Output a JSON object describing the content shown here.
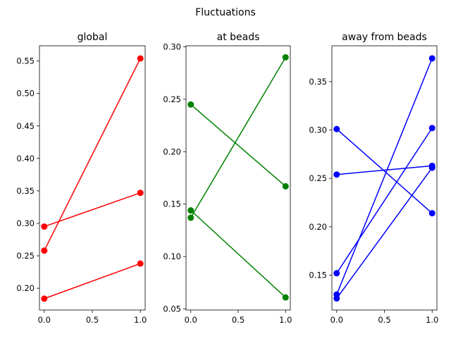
{
  "figure": {
    "suptitle": "Fluctuations"
  },
  "chart_data": [
    {
      "type": "line",
      "title": "global",
      "color": "#ff0000",
      "xlim": [
        -0.05,
        1.05
      ],
      "ylim": [
        0.1665,
        0.5735
      ],
      "xticks": [
        0.0,
        0.5,
        1.0
      ],
      "xtick_labels": [
        "0.0",
        "0.5",
        "1.0"
      ],
      "yticks": [
        0.2,
        0.25,
        0.3,
        0.35,
        0.4,
        0.45,
        0.5,
        0.55
      ],
      "ytick_labels": [
        "0.20",
        "0.25",
        "0.30",
        "0.35",
        "0.40",
        "0.45",
        "0.50",
        "0.55"
      ],
      "series": [
        {
          "x": [
            0,
            1
          ],
          "y": [
            0.295,
            0.347
          ]
        },
        {
          "x": [
            0,
            1
          ],
          "y": [
            0.258,
            0.554
          ]
        },
        {
          "x": [
            0,
            1
          ],
          "y": [
            0.184,
            0.238
          ]
        }
      ]
    },
    {
      "type": "line",
      "title": "at beads",
      "color": "#008000",
      "xlim": [
        -0.05,
        1.05
      ],
      "ylim": [
        0.049,
        0.301
      ],
      "xticks": [
        0.0,
        0.5,
        1.0
      ],
      "xtick_labels": [
        "0.0",
        "0.5",
        "1.0"
      ],
      "yticks": [
        0.05,
        0.1,
        0.15,
        0.2,
        0.25,
        0.3
      ],
      "ytick_labels": [
        "0.05",
        "0.10",
        "0.15",
        "0.20",
        "0.25",
        "0.30"
      ],
      "series": [
        {
          "x": [
            0,
            1
          ],
          "y": [
            0.245,
            0.167
          ]
        },
        {
          "x": [
            0,
            1
          ],
          "y": [
            0.137,
            0.29
          ]
        },
        {
          "x": [
            0,
            1
          ],
          "y": [
            0.144,
            0.061
          ]
        }
      ]
    },
    {
      "type": "line",
      "title": "away from beads",
      "color": "#0000ff",
      "xlim": [
        -0.05,
        1.05
      ],
      "ylim": [
        0.114,
        0.387
      ],
      "xticks": [
        0.0,
        0.5,
        1.0
      ],
      "xtick_labels": [
        "0.0",
        "0.5",
        "1.0"
      ],
      "yticks": [
        0.15,
        0.2,
        0.25,
        0.3,
        0.35
      ],
      "ytick_labels": [
        "0.15",
        "0.20",
        "0.25",
        "0.30",
        "0.35"
      ],
      "series": [
        {
          "x": [
            0,
            1
          ],
          "y": [
            0.301,
            0.214
          ]
        },
        {
          "x": [
            0,
            1
          ],
          "y": [
            0.254,
            0.263
          ]
        },
        {
          "x": [
            0,
            1
          ],
          "y": [
            0.152,
            0.302
          ]
        },
        {
          "x": [
            0,
            1
          ],
          "y": [
            0.13,
            0.374
          ]
        },
        {
          "x": [
            0,
            1
          ],
          "y": [
            0.126,
            0.261
          ]
        }
      ]
    }
  ]
}
